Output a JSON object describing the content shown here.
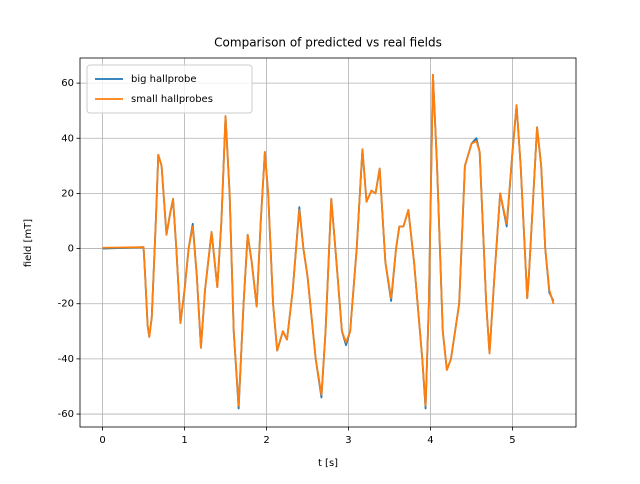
{
  "chart_data": {
    "type": "line",
    "title": "Comparison of predicted vs real fields",
    "xlabel": "t [s]",
    "ylabel": "field [mT]",
    "x": [
      0,
      0.5,
      0.52,
      0.55,
      0.57,
      0.6,
      0.65,
      0.68,
      0.72,
      0.78,
      0.82,
      0.86,
      0.9,
      0.95,
      1.0,
      1.05,
      1.1,
      1.15,
      1.2,
      1.25,
      1.33,
      1.4,
      1.45,
      1.5,
      1.55,
      1.6,
      1.66,
      1.72,
      1.77,
      1.82,
      1.88,
      1.93,
      1.98,
      2.02,
      2.08,
      2.13,
      2.2,
      2.25,
      2.32,
      2.4,
      2.45,
      2.5,
      2.6,
      2.67,
      2.72,
      2.79,
      2.84,
      2.92,
      2.97,
      3.02,
      3.1,
      3.17,
      3.22,
      3.28,
      3.33,
      3.38,
      3.45,
      3.52,
      3.58,
      3.62,
      3.67,
      3.73,
      3.8,
      3.9,
      3.94,
      3.98,
      4.03,
      4.08,
      4.15,
      4.2,
      4.25,
      4.35,
      4.42,
      4.5,
      4.56,
      4.6,
      4.68,
      4.72,
      4.78,
      4.85,
      4.93,
      5.0,
      5.05,
      5.1,
      5.18,
      5.2,
      5.3,
      5.35,
      5.4,
      5.45,
      5.5
    ],
    "series": [
      {
        "name": "big hallprobe",
        "color": "#1f77b4",
        "values": [
          0,
          0.5,
          -10,
          -28,
          -32,
          -25,
          10,
          34,
          30,
          5,
          12,
          18,
          0,
          -27,
          -15,
          0,
          9,
          -10,
          -36,
          -15,
          6,
          -14,
          10,
          48,
          20,
          -30,
          -58,
          -20,
          5,
          -5,
          -21,
          10,
          35,
          20,
          -20,
          -37,
          -30,
          -33,
          -15,
          15,
          0,
          -10,
          -40,
          -54,
          -30,
          18,
          0,
          -30,
          -35,
          -30,
          0,
          36,
          17,
          21,
          20,
          29,
          -5,
          -19,
          0,
          8,
          8,
          14,
          -5,
          -40,
          -58,
          -20,
          63,
          30,
          -30,
          -44,
          -40,
          -20,
          30,
          38,
          40,
          35,
          -20,
          -38,
          -10,
          20,
          8,
          35,
          52,
          30,
          -18,
          -10,
          44,
          30,
          0,
          -16,
          -19
        ]
      },
      {
        "name": "small hallprobes",
        "color": "#ff7f0e",
        "values": [
          0.3,
          0.5,
          -10,
          -28,
          -32,
          -25,
          10,
          34,
          30,
          5,
          12,
          18,
          0,
          -27,
          -15,
          0,
          8,
          -10,
          -36,
          -15,
          6,
          -14,
          10,
          48,
          20,
          -30,
          -57,
          -20,
          5,
          -5,
          -21,
          10,
          35,
          20,
          -20,
          -37,
          -30,
          -33,
          -15,
          14,
          0,
          -10,
          -40,
          -53,
          -30,
          18,
          0,
          -30,
          -34,
          -30,
          0,
          36,
          17,
          21,
          20,
          29,
          -5,
          -18,
          0,
          8,
          8,
          14,
          -5,
          -40,
          -57,
          -20,
          63,
          30,
          -30,
          -44,
          -40,
          -20,
          30,
          38,
          39,
          35,
          -20,
          -38,
          -10,
          20,
          9,
          35,
          52,
          30,
          -18,
          -10,
          44,
          30,
          0,
          -15,
          -20
        ]
      }
    ],
    "xlim": [
      -0.275,
      5.775
    ],
    "ylim": [
      -64.7,
      69.1
    ],
    "xticks": [
      0,
      1,
      2,
      3,
      4,
      5
    ],
    "yticks": [
      -60,
      -40,
      -20,
      0,
      20,
      40,
      60
    ],
    "grid": true,
    "legend": "upper left"
  }
}
